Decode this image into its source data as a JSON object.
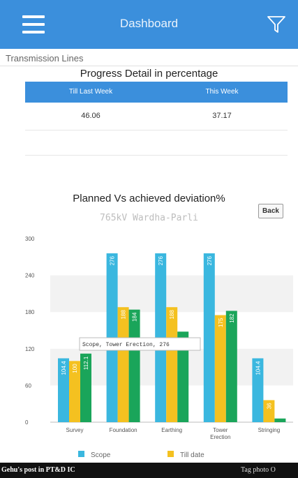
{
  "header": {
    "title": "Dashboard",
    "bg_color": "#3b8fdc"
  },
  "subheader": {
    "label": "Transmission Lines"
  },
  "progress": {
    "title": "Progress Detail in percentage",
    "headers": [
      "Till Last Week",
      "This Week"
    ],
    "values": [
      "46.06",
      "37.17"
    ]
  },
  "chart": {
    "title": "Planned Vs achieved deviation%",
    "subtitle": "765kV Wardha-Parli",
    "back_label": "Back",
    "tooltip": "Scope, Tower Erection, 276"
  },
  "chart_data": {
    "type": "bar",
    "categories": [
      "Survey",
      "Foundation",
      "Earthing",
      "Tower Erection",
      "Stringing"
    ],
    "series": [
      {
        "name": "Scope",
        "color": "#3ab7df",
        "values": [
          104.4,
          276,
          276,
          276,
          104.4
        ]
      },
      {
        "name": "Till date",
        "color": "#f4c120",
        "values": [
          100,
          188,
          188,
          175,
          36
        ]
      },
      {
        "name": "",
        "color": "#1aa55a",
        "values": [
          112.1,
          184,
          148,
          182,
          6
        ]
      }
    ],
    "value_labels": [
      [
        "104.4",
        "276",
        "276",
        "276",
        "104.4"
      ],
      [
        "100",
        "188",
        "188",
        "175",
        "36"
      ],
      [
        "112.1",
        "184",
        "",
        "182",
        ""
      ]
    ],
    "yticks": [
      0,
      60,
      120,
      180,
      240,
      300
    ],
    "ylim": [
      0,
      300
    ],
    "legend": [
      "Scope",
      "Till date"
    ],
    "legend_placement": "bottom"
  },
  "bottom_bar": {
    "left_text": "Gehu's post in PT&D IC",
    "right_text": "Tag photo   O"
  }
}
